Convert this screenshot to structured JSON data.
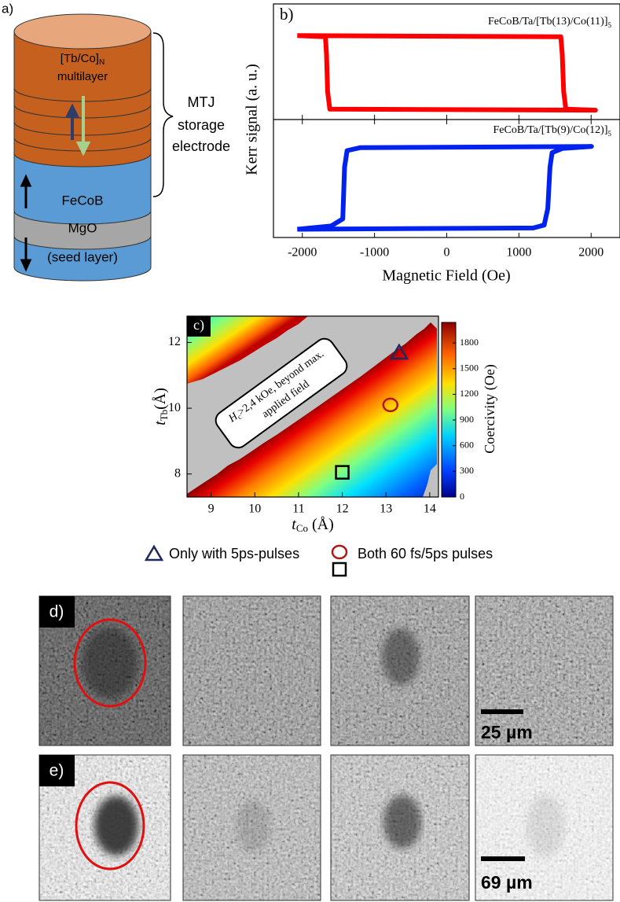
{
  "panel_a": {
    "label": "a)",
    "multilayer": {
      "name": "[Tb/Co]",
      "subscript": "N",
      "line2": "multilayer"
    },
    "fecob": "FeCoB",
    "mgo": "MgO",
    "seed": "(seed layer)",
    "brace_label": [
      "MTJ",
      "storage",
      "electrode"
    ]
  },
  "panel_b": {
    "type": "line",
    "label": "b)",
    "ylabel": "Kerr signal (a. u.)",
    "xlabel": "Magnetic Field (Oe)",
    "xlim": [
      -2400,
      2400
    ],
    "xticks": [
      -2000,
      -1000,
      0,
      1000,
      2000
    ],
    "subplots": [
      {
        "title": "FeCoB/Ta/[Tb(13)/Co(11)]",
        "title_subscript": "5",
        "ylim": [
          -1.25,
          1.85
        ],
        "series": [
          {
            "color": "#ff0000",
            "x": [
              -2070,
              1580,
              1600,
              1620,
              1650,
              2060,
              -1620,
              -1650,
              -1665,
              -1680,
              -2070
            ],
            "y": [
              1,
              0.97,
              0.5,
              -0.5,
              -0.97,
              -1,
              -0.97,
              -0.5,
              0.5,
              0.97,
              1
            ]
          }
        ]
      },
      {
        "title": "FeCoB/Ta/[Tb(9)/Co(12)]",
        "title_subscript": "5",
        "ylim": [
          -1.2,
          1.65
        ],
        "series": [
          {
            "color": "#0022ee",
            "x": [
              -2070,
              1200,
              1350,
              1400,
              1430,
              1460,
              1600,
              2005,
              -1200,
              -1380,
              -1415,
              -1440,
              -1600,
              -2070
            ],
            "y": [
              -1,
              -0.97,
              -0.9,
              -0.5,
              0.5,
              0.85,
              0.95,
              1,
              0.97,
              0.9,
              0.5,
              -0.75,
              -0.92,
              -1
            ]
          }
        ]
      }
    ]
  },
  "panel_c": {
    "label": "c)",
    "xlabel": {
      "symbol": "t",
      "subscript": "Co",
      "unit": " (Å)"
    },
    "ylabel": {
      "symbol": "t",
      "subscript": "Tb",
      "unit": "(Å)"
    },
    "xlim": [
      8.45,
      14.2
    ],
    "xticks": [
      9,
      10,
      11,
      12,
      13,
      14
    ],
    "ylim": [
      7.3,
      12.8
    ],
    "yticks": [
      8,
      10,
      12
    ],
    "colorbar": {
      "label": "Coercivity (Oe)",
      "lim": [
        0,
        2040
      ],
      "ticks": [
        0,
        300,
        600,
        900,
        1200,
        1500,
        1800
      ]
    },
    "annotation": {
      "symbol": "H",
      "subscript": "c",
      "text": ">2,4 kOe, beyond max.",
      "line2": "applied field"
    },
    "markers": [
      {
        "shape": "triangle",
        "color": "#1f2a5c",
        "x": 13.3,
        "y": 11.7
      },
      {
        "shape": "circle",
        "color": "#b01818",
        "x": 13.1,
        "y": 10.1
      },
      {
        "shape": "square",
        "color": "#000000",
        "x": 12,
        "y": 8.05
      }
    ],
    "legend": [
      "Only with 5ps-pulses",
      "Both 60 fs/5ps pulses"
    ]
  },
  "panel_d": {
    "label": "d)",
    "scale_bar": "25 µm"
  },
  "panel_e": {
    "label": "e)",
    "scale_bar": "69 µm"
  }
}
